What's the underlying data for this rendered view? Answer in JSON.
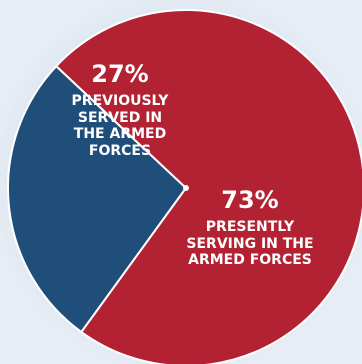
{
  "chart_data": {
    "type": "pie",
    "slices": [
      {
        "percent_label": "27%",
        "label": "PREVIOUSLY\nSERVED IN\nTHE ARMED\nFORCES",
        "value": 27,
        "color": "#1f4e7a"
      },
      {
        "percent_label": "73%",
        "label": "PRESENTLY\nSERVING IN THE\nARMED FORCES",
        "value": 73,
        "color": "#b22232"
      }
    ],
    "background_color": "#e3eaf2"
  }
}
